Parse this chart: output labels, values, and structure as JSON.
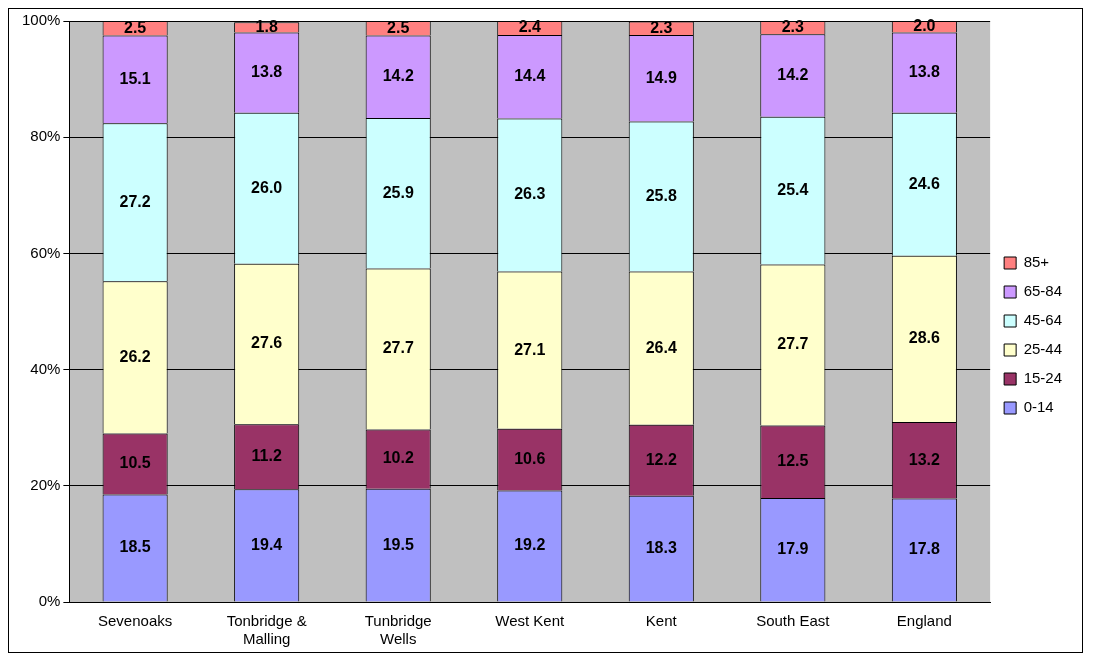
{
  "chart_data": {
    "type": "bar",
    "stacked": true,
    "categories": [
      "Sevenoaks",
      "Tonbridge & Malling",
      "Tunbridge Wells",
      "West Kent",
      "Kent",
      "South East",
      "England"
    ],
    "series": [
      {
        "name": "0-14",
        "color": "#9999ff",
        "values": [
          18.5,
          19.4,
          19.5,
          19.2,
          18.3,
          17.9,
          17.8
        ],
        "value_labels": [
          "18.5",
          "19.4",
          "19.5",
          "19.2",
          "18.3",
          "17.9",
          "17.8"
        ]
      },
      {
        "name": "15-24",
        "color": "#993366",
        "values": [
          10.5,
          11.2,
          10.2,
          10.6,
          12.2,
          12.5,
          13.2
        ],
        "value_labels": [
          "10.5",
          "11.2",
          "10.2",
          "10.6",
          "12.2",
          "12.5",
          "13.2"
        ]
      },
      {
        "name": "25-44",
        "color": "#ffffcc",
        "values": [
          26.2,
          27.6,
          27.7,
          27.1,
          26.4,
          27.7,
          28.6
        ],
        "value_labels": [
          "26.2",
          "27.6",
          "27.7",
          "27.1",
          "26.4",
          "27.7",
          "28.6"
        ]
      },
      {
        "name": "45-64",
        "color": "#ccffff",
        "values": [
          27.2,
          26.0,
          25.9,
          26.3,
          25.8,
          25.4,
          24.6
        ],
        "value_labels": [
          "27.2",
          "26.0",
          "25.9",
          "26.3",
          "25.8",
          "25.4",
          "24.6"
        ]
      },
      {
        "name": "65-84",
        "color": "#cc99ff",
        "values": [
          15.1,
          13.8,
          14.2,
          14.4,
          14.9,
          14.2,
          13.8
        ],
        "value_labels": [
          "15.1",
          "13.8",
          "14.2",
          "14.4",
          "14.9",
          "14.2",
          "13.8"
        ]
      },
      {
        "name": "85+",
        "color": "#ff8080",
        "values": [
          2.5,
          1.8,
          2.5,
          2.4,
          2.3,
          2.3,
          2.0
        ],
        "value_labels": [
          "2.5",
          "1.8",
          "2.5",
          "2.4",
          "2.3",
          "2.3",
          "2.0"
        ]
      }
    ],
    "ylim": [
      0,
      100
    ],
    "yticks": [
      {
        "value": 0,
        "label": "0%"
      },
      {
        "value": 20,
        "label": "20%"
      },
      {
        "value": 40,
        "label": "40%"
      },
      {
        "value": 60,
        "label": "60%"
      },
      {
        "value": 80,
        "label": "80%"
      },
      {
        "value": 100,
        "label": "100%"
      }
    ],
    "grid": "y",
    "legend": "right"
  }
}
